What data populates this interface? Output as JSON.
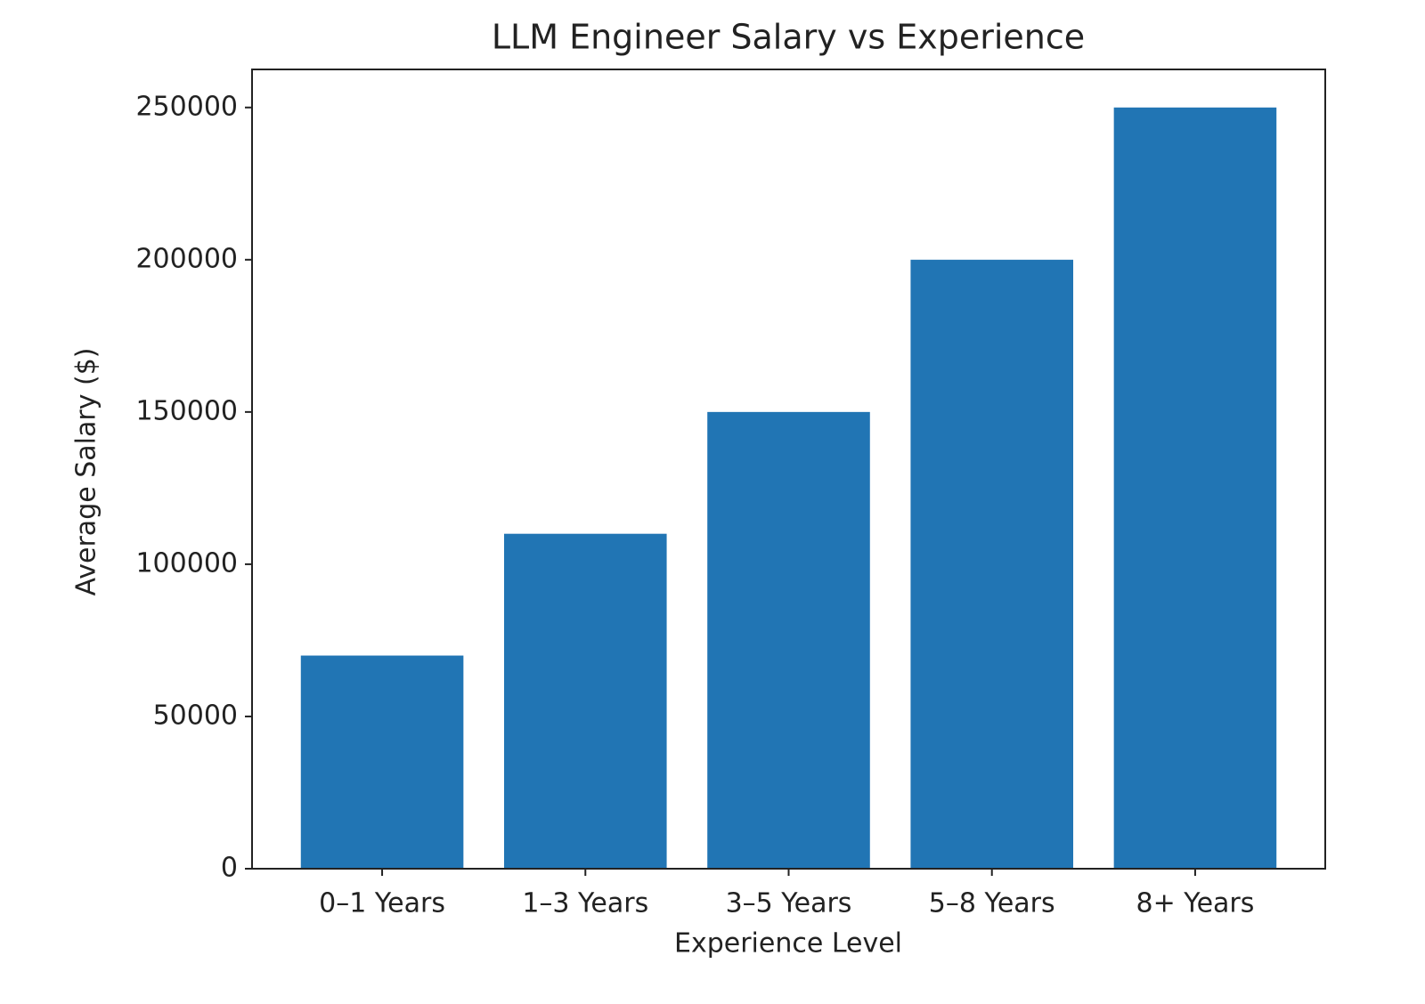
{
  "chart_data": {
    "type": "bar",
    "title": "LLM Engineer Salary vs Experience",
    "x_label": "Experience Level",
    "y_label": "Average Salary ($)",
    "categories": [
      "0–1 Years",
      "1–3 Years",
      "3–5 Years",
      "5–8 Years",
      "8+ Years"
    ],
    "values": [
      70000,
      110000,
      150000,
      200000,
      250000
    ],
    "color": "#2175b4",
    "ylim": [
      0,
      262500
    ],
    "yticks": [
      0,
      50000,
      100000,
      150000,
      200000,
      250000
    ],
    "grid": false
  }
}
